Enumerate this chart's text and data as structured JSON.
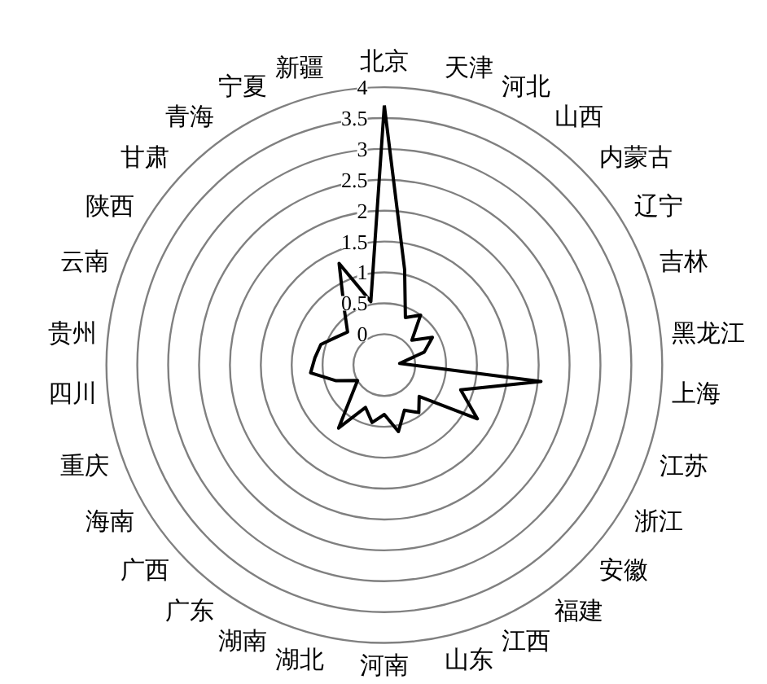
{
  "chart_data": {
    "type": "radar",
    "categories": [
      "北京",
      "天津",
      "河北",
      "山西",
      "内蒙古",
      "辽宁",
      "吉林",
      "黑龙江",
      "上海",
      "江苏",
      "浙江",
      "安徽",
      "福建",
      "江西",
      "山东",
      "河南",
      "湖北",
      "湖南",
      "广东",
      "广西",
      "海南",
      "重庆",
      "四川",
      "贵州",
      "云南",
      "陕西",
      "甘肃",
      "青海",
      "宁夏",
      "新疆"
    ],
    "series": [
      {
        "color": "#000000",
        "values": [
          3.7,
          1.08,
          0.34,
          0.5,
          0.1,
          0.4,
          0.18,
          -0.25,
          2.05,
          0.8,
          1.24,
          0.26,
          0.45,
          0.3,
          0.6,
          0.3,
          0.45,
          0.25,
          0.76,
          0.2,
          0.0,
          0.32,
          0.7,
          0.63,
          0.58,
          0.4,
          0.3,
          0.6,
          1.3,
          0.55
        ]
      }
    ],
    "ylim": [
      -0.5,
      4
    ],
    "yticks": [
      0,
      0.5,
      1,
      1.5,
      2,
      2.5,
      3,
      3.5,
      4
    ],
    "grid": true,
    "marker": "none",
    "line_style": "solid"
  }
}
